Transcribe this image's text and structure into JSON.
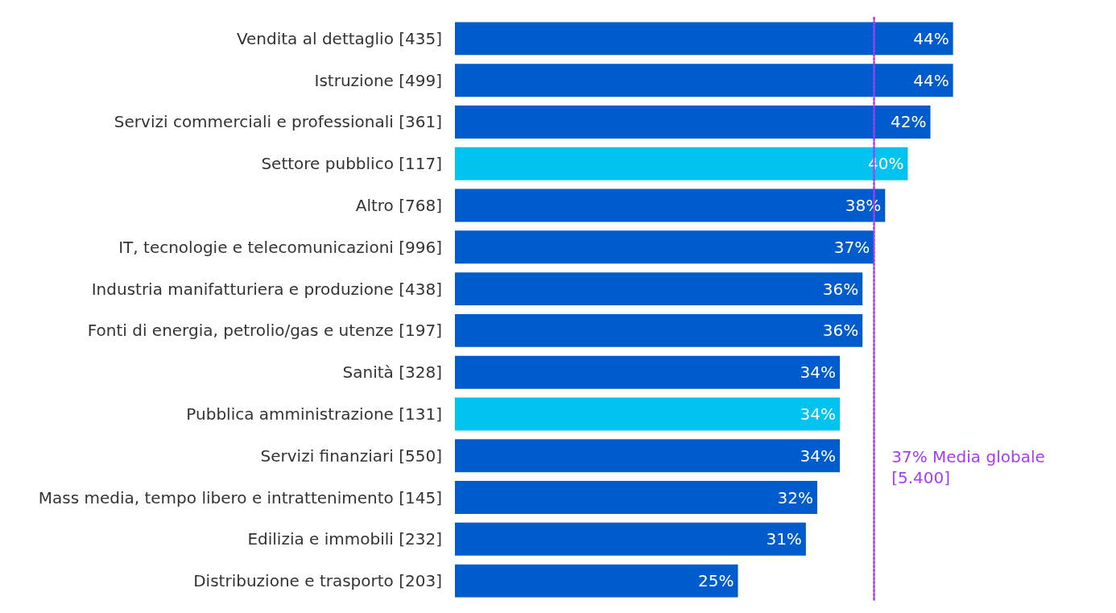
{
  "chart_data": {
    "type": "bar",
    "orientation": "horizontal",
    "categories": [
      "Vendita al dettaglio [435]",
      "Istruzione [499]",
      "Servizi commerciali e professionali [361]",
      "Settore pubblico [117]",
      "Altro [768]",
      "IT, tecnologie e telecomunicazioni [996]",
      "Industria manifatturiera e produzione [438]",
      "Fonti di energia, petrolio/gas e utenze [197]",
      "Sanità [328]",
      "Pubblica amministrazione [131]",
      "Servizi finanziari [550]",
      "Mass media, tempo libero e intrattenimento [145]",
      "Edilizia e immobili [232]",
      "Distribuzione e trasporto [203]"
    ],
    "values": [
      44,
      44,
      42,
      40,
      38,
      37,
      36,
      36,
      34,
      34,
      34,
      32,
      31,
      25
    ],
    "colors": [
      "#005ccc",
      "#005ccc",
      "#005ccc",
      "#00c3f0",
      "#005ccc",
      "#005ccc",
      "#005ccc",
      "#005ccc",
      "#005ccc",
      "#00c3f0",
      "#005ccc",
      "#005ccc",
      "#005ccc",
      "#005ccc"
    ],
    "value_labels": [
      "44%",
      "44%",
      "42%",
      "40%",
      "38%",
      "37%",
      "36%",
      "36%",
      "34%",
      "34%",
      "34%",
      "32%",
      "31%",
      "25%"
    ],
    "ref_lines": [
      {
        "axis": "x",
        "value": 37,
        "label": "37% Media globale [5.400]",
        "color": "#a93bf5",
        "line_style": "dotted"
      }
    ],
    "tick_labels": "y"
  }
}
